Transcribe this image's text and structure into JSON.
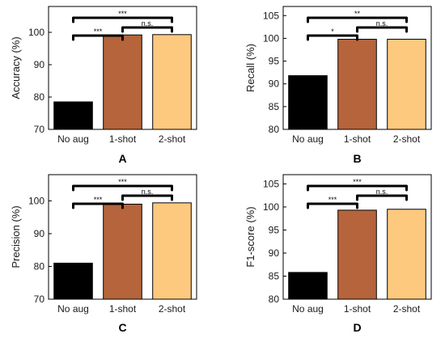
{
  "colors": {
    "No aug": "#000000",
    "1-shot": "#b5643c",
    "2-shot": "#fdc97e",
    "bracket": "#000000"
  },
  "chart_data": [
    {
      "type": "bar",
      "panel_label": "A",
      "categories": [
        "No aug",
        "1-shot",
        "2-shot"
      ],
      "values": [
        78.5,
        99.2,
        99.3
      ],
      "ylabel": "Accuracy (%)",
      "ylim": [
        70,
        108
      ],
      "yticks": [
        70,
        80,
        90,
        100
      ],
      "significance": [
        {
          "from": "No aug",
          "to": "1-shot",
          "label": "***"
        },
        {
          "from": "1-shot",
          "to": "2-shot",
          "label": "n.s."
        },
        {
          "from": "No aug",
          "to": "2-shot",
          "label": "***"
        }
      ]
    },
    {
      "type": "bar",
      "panel_label": "B",
      "categories": [
        "No aug",
        "1-shot",
        "2-shot"
      ],
      "values": [
        91.8,
        99.8,
        99.8
      ],
      "ylabel": "Recall (%)",
      "ylim": [
        80,
        107
      ],
      "yticks": [
        80,
        85,
        90,
        95,
        100,
        105
      ],
      "significance": [
        {
          "from": "No aug",
          "to": "1-shot",
          "label": "*"
        },
        {
          "from": "1-shot",
          "to": "2-shot",
          "label": "n.s."
        },
        {
          "from": "No aug",
          "to": "2-shot",
          "label": "**"
        }
      ]
    },
    {
      "type": "bar",
      "panel_label": "C",
      "categories": [
        "No aug",
        "1-shot",
        "2-shot"
      ],
      "values": [
        81.0,
        99.0,
        99.4
      ],
      "ylabel": "Precision (%)",
      "ylim": [
        70,
        108
      ],
      "yticks": [
        70,
        80,
        90,
        100
      ],
      "significance": [
        {
          "from": "No aug",
          "to": "1-shot",
          "label": "***"
        },
        {
          "from": "1-shot",
          "to": "2-shot",
          "label": "n.s."
        },
        {
          "from": "No aug",
          "to": "2-shot",
          "label": "***"
        }
      ]
    },
    {
      "type": "bar",
      "panel_label": "D",
      "categories": [
        "No aug",
        "1-shot",
        "2-shot"
      ],
      "values": [
        85.8,
        99.3,
        99.5
      ],
      "ylabel": "F1-score (%)",
      "ylim": [
        80,
        107
      ],
      "yticks": [
        80,
        85,
        90,
        95,
        100,
        105
      ],
      "significance": [
        {
          "from": "No aug",
          "to": "1-shot",
          "label": "***"
        },
        {
          "from": "1-shot",
          "to": "2-shot",
          "label": "n.s."
        },
        {
          "from": "No aug",
          "to": "2-shot",
          "label": "***"
        }
      ]
    }
  ]
}
